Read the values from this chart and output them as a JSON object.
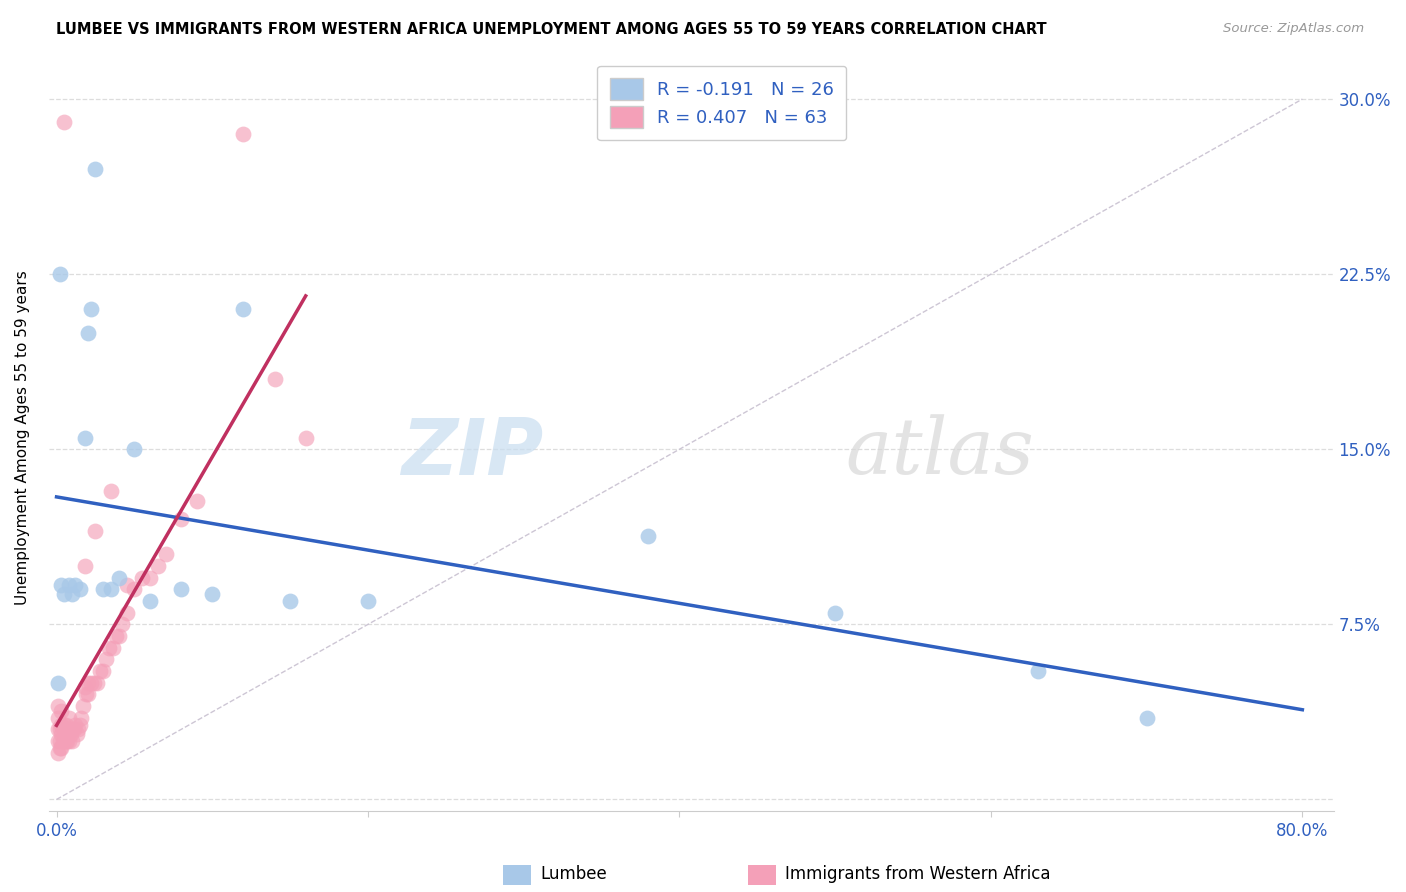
{
  "title": "LUMBEE VS IMMIGRANTS FROM WESTERN AFRICA UNEMPLOYMENT AMONG AGES 55 TO 59 YEARS CORRELATION CHART",
  "source": "Source: ZipAtlas.com",
  "ylabel": "Unemployment Among Ages 55 to 59 years",
  "xlim": [
    -0.005,
    0.82
  ],
  "ylim": [
    -0.005,
    0.315
  ],
  "lumbee_R": -0.191,
  "lumbee_N": 26,
  "wa_R": 0.407,
  "wa_N": 63,
  "lumbee_color": "#a8c8e8",
  "wa_color": "#f4a0b8",
  "lumbee_line_color": "#3060c0",
  "wa_line_color": "#c03060",
  "ref_line_color": "#c8c0d0",
  "lumbee_x": [
    0.001,
    0.003,
    0.005,
    0.008,
    0.01,
    0.012,
    0.015,
    0.018,
    0.02,
    0.025,
    0.03,
    0.035,
    0.04,
    0.05,
    0.06,
    0.08,
    0.1,
    0.12,
    0.15,
    0.2,
    0.38,
    0.5,
    0.63,
    0.7,
    0.002,
    0.022
  ],
  "lumbee_y": [
    0.05,
    0.092,
    0.088,
    0.092,
    0.088,
    0.092,
    0.09,
    0.155,
    0.2,
    0.27,
    0.09,
    0.09,
    0.095,
    0.15,
    0.085,
    0.09,
    0.088,
    0.21,
    0.085,
    0.085,
    0.113,
    0.08,
    0.055,
    0.035,
    0.225,
    0.21
  ],
  "wa_x": [
    0.001,
    0.001,
    0.001,
    0.001,
    0.001,
    0.002,
    0.002,
    0.002,
    0.003,
    0.003,
    0.003,
    0.003,
    0.004,
    0.004,
    0.005,
    0.005,
    0.006,
    0.006,
    0.007,
    0.007,
    0.008,
    0.008,
    0.009,
    0.01,
    0.01,
    0.011,
    0.012,
    0.013,
    0.014,
    0.015,
    0.016,
    0.017,
    0.018,
    0.019,
    0.02,
    0.02,
    0.022,
    0.024,
    0.026,
    0.028,
    0.03,
    0.032,
    0.034,
    0.036,
    0.038,
    0.04,
    0.042,
    0.045,
    0.05,
    0.055,
    0.06,
    0.065,
    0.07,
    0.08,
    0.09,
    0.12,
    0.14,
    0.16,
    0.018,
    0.025,
    0.035,
    0.045,
    0.005
  ],
  "wa_y": [
    0.025,
    0.03,
    0.035,
    0.04,
    0.02,
    0.025,
    0.03,
    0.022,
    0.022,
    0.028,
    0.032,
    0.038,
    0.025,
    0.03,
    0.025,
    0.032,
    0.025,
    0.032,
    0.025,
    0.03,
    0.025,
    0.035,
    0.028,
    0.025,
    0.03,
    0.03,
    0.032,
    0.028,
    0.03,
    0.032,
    0.035,
    0.04,
    0.048,
    0.045,
    0.045,
    0.05,
    0.05,
    0.05,
    0.05,
    0.055,
    0.055,
    0.06,
    0.065,
    0.065,
    0.07,
    0.07,
    0.075,
    0.08,
    0.09,
    0.095,
    0.095,
    0.1,
    0.105,
    0.12,
    0.128,
    0.285,
    0.18,
    0.155,
    0.1,
    0.115,
    0.132,
    0.092,
    0.29
  ],
  "watermark_zip": "ZIP",
  "watermark_atlas": "atlas",
  "figsize": [
    14.06,
    8.92
  ],
  "dpi": 100
}
